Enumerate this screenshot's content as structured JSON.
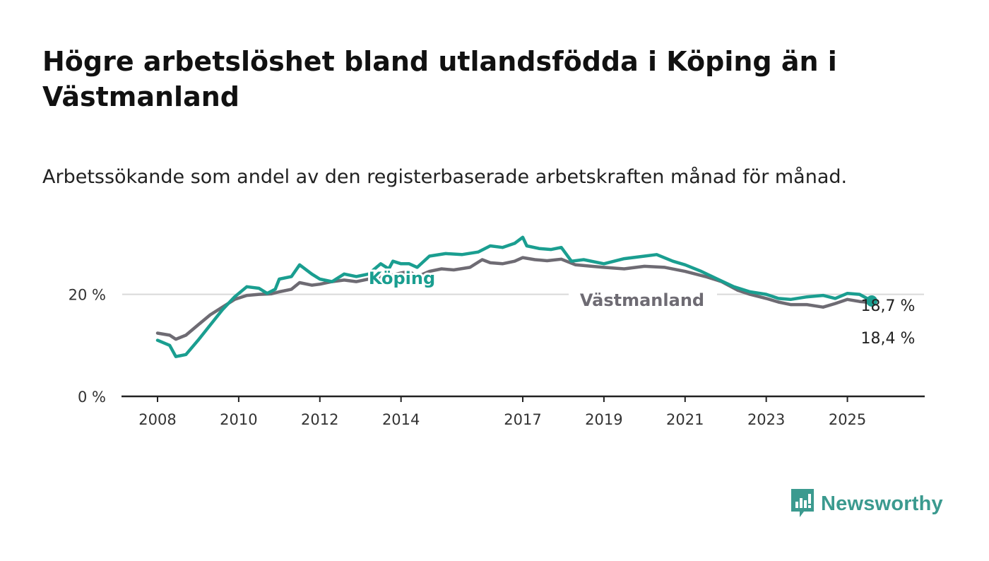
{
  "title": "Högre arbetslöshet bland utlandsfödda i Köping än i Västmanland",
  "subtitle": "Arbetssökande som andel av den registerbaserade arbetskraften månad för månad.",
  "logo": {
    "text": "Newsworthy",
    "icon": "newsworthy-bar-chart-icon"
  },
  "colors": {
    "koping": "#1a9e90",
    "vastmanland": "#6e6b73",
    "grid": "#d9d9d9",
    "axis": "#222222",
    "logo": "#3b9a8f"
  },
  "chart_data": {
    "type": "line",
    "title": "",
    "xlabel": "",
    "ylabel": "",
    "ylim": [
      0,
      32
    ],
    "xlim": [
      2008.0,
      2026.0
    ],
    "y_ticks": [
      {
        "value": 0,
        "label": "0 %"
      },
      {
        "value": 20,
        "label": "20 %"
      }
    ],
    "x_ticks": [
      {
        "value": 2008,
        "label": "2008"
      },
      {
        "value": 2010,
        "label": "2010"
      },
      {
        "value": 2012,
        "label": "2012"
      },
      {
        "value": 2014,
        "label": "2014"
      },
      {
        "value": 2017,
        "label": "2017"
      },
      {
        "value": 2019,
        "label": "2019"
      },
      {
        "value": 2021,
        "label": "2021"
      },
      {
        "value": 2023,
        "label": "2023"
      },
      {
        "value": 2025,
        "label": "2025"
      }
    ],
    "grid": "horizontal",
    "legend": "inline labels",
    "series": [
      {
        "name": "Köping",
        "end_label": "18,7 %",
        "points": [
          [
            2008.0,
            11.0
          ],
          [
            2008.3,
            10.0
          ],
          [
            2008.45,
            7.8
          ],
          [
            2008.7,
            8.2
          ],
          [
            2009.0,
            11.0
          ],
          [
            2009.3,
            14.0
          ],
          [
            2009.6,
            17.0
          ],
          [
            2009.9,
            19.5
          ],
          [
            2010.2,
            21.5
          ],
          [
            2010.5,
            21.2
          ],
          [
            2010.7,
            20.2
          ],
          [
            2010.9,
            21.0
          ],
          [
            2011.0,
            23.0
          ],
          [
            2011.3,
            23.5
          ],
          [
            2011.5,
            25.8
          ],
          [
            2011.8,
            24.0
          ],
          [
            2012.0,
            23.0
          ],
          [
            2012.3,
            22.5
          ],
          [
            2012.6,
            24.0
          ],
          [
            2012.9,
            23.5
          ],
          [
            2013.2,
            24.0
          ],
          [
            2013.5,
            26.0
          ],
          [
            2013.7,
            25.0
          ],
          [
            2013.8,
            26.5
          ],
          [
            2014.0,
            26.0
          ],
          [
            2014.2,
            26.0
          ],
          [
            2014.4,
            25.3
          ],
          [
            2014.7,
            27.5
          ],
          [
            2015.1,
            28.0
          ],
          [
            2015.5,
            27.8
          ],
          [
            2015.9,
            28.3
          ],
          [
            2016.2,
            29.5
          ],
          [
            2016.5,
            29.2
          ],
          [
            2016.8,
            30.0
          ],
          [
            2017.0,
            31.2
          ],
          [
            2017.1,
            29.5
          ],
          [
            2017.4,
            29.0
          ],
          [
            2017.7,
            28.8
          ],
          [
            2017.95,
            29.2
          ],
          [
            2018.2,
            26.5
          ],
          [
            2018.5,
            26.8
          ],
          [
            2019.0,
            26.0
          ],
          [
            2019.5,
            27.0
          ],
          [
            2020.0,
            27.5
          ],
          [
            2020.3,
            27.8
          ],
          [
            2020.7,
            26.5
          ],
          [
            2021.0,
            25.8
          ],
          [
            2021.4,
            24.5
          ],
          [
            2021.8,
            23.0
          ],
          [
            2022.2,
            21.5
          ],
          [
            2022.6,
            20.5
          ],
          [
            2023.0,
            20.0
          ],
          [
            2023.3,
            19.2
          ],
          [
            2023.6,
            19.0
          ],
          [
            2024.0,
            19.5
          ],
          [
            2024.4,
            19.8
          ],
          [
            2024.7,
            19.2
          ],
          [
            2025.0,
            20.2
          ],
          [
            2025.3,
            20.0
          ],
          [
            2025.6,
            18.7
          ]
        ]
      },
      {
        "name": "Västmanland",
        "end_label": "18,4 %",
        "points": [
          [
            2008.0,
            12.4
          ],
          [
            2008.3,
            12.0
          ],
          [
            2008.45,
            11.2
          ],
          [
            2008.7,
            12.0
          ],
          [
            2009.0,
            14.0
          ],
          [
            2009.3,
            16.0
          ],
          [
            2009.6,
            17.5
          ],
          [
            2009.9,
            19.0
          ],
          [
            2010.2,
            19.8
          ],
          [
            2010.5,
            20.0
          ],
          [
            2010.8,
            20.1
          ],
          [
            2011.0,
            20.5
          ],
          [
            2011.3,
            21.0
          ],
          [
            2011.5,
            22.3
          ],
          [
            2011.8,
            21.8
          ],
          [
            2012.0,
            22.0
          ],
          [
            2012.3,
            22.5
          ],
          [
            2012.6,
            22.8
          ],
          [
            2012.9,
            22.5
          ],
          [
            2013.2,
            23.0
          ],
          [
            2013.5,
            23.4
          ],
          [
            2013.8,
            23.8
          ],
          [
            2014.0,
            24.2
          ],
          [
            2014.2,
            24.5
          ],
          [
            2014.4,
            23.5
          ],
          [
            2014.7,
            24.5
          ],
          [
            2015.0,
            25.0
          ],
          [
            2015.3,
            24.8
          ],
          [
            2015.7,
            25.3
          ],
          [
            2016.0,
            26.8
          ],
          [
            2016.2,
            26.2
          ],
          [
            2016.5,
            26.0
          ],
          [
            2016.8,
            26.5
          ],
          [
            2017.0,
            27.2
          ],
          [
            2017.3,
            26.8
          ],
          [
            2017.6,
            26.6
          ],
          [
            2017.95,
            26.9
          ],
          [
            2018.3,
            25.8
          ],
          [
            2018.7,
            25.5
          ],
          [
            2019.0,
            25.3
          ],
          [
            2019.5,
            25.0
          ],
          [
            2020.0,
            25.5
          ],
          [
            2020.5,
            25.3
          ],
          [
            2021.0,
            24.5
          ],
          [
            2021.5,
            23.5
          ],
          [
            2021.9,
            22.5
          ],
          [
            2022.3,
            20.8
          ],
          [
            2022.6,
            20.0
          ],
          [
            2023.0,
            19.2
          ],
          [
            2023.3,
            18.5
          ],
          [
            2023.6,
            18.0
          ],
          [
            2024.0,
            18.0
          ],
          [
            2024.4,
            17.5
          ],
          [
            2024.7,
            18.2
          ],
          [
            2025.0,
            19.0
          ],
          [
            2025.3,
            18.6
          ],
          [
            2025.6,
            18.4
          ]
        ]
      }
    ]
  }
}
